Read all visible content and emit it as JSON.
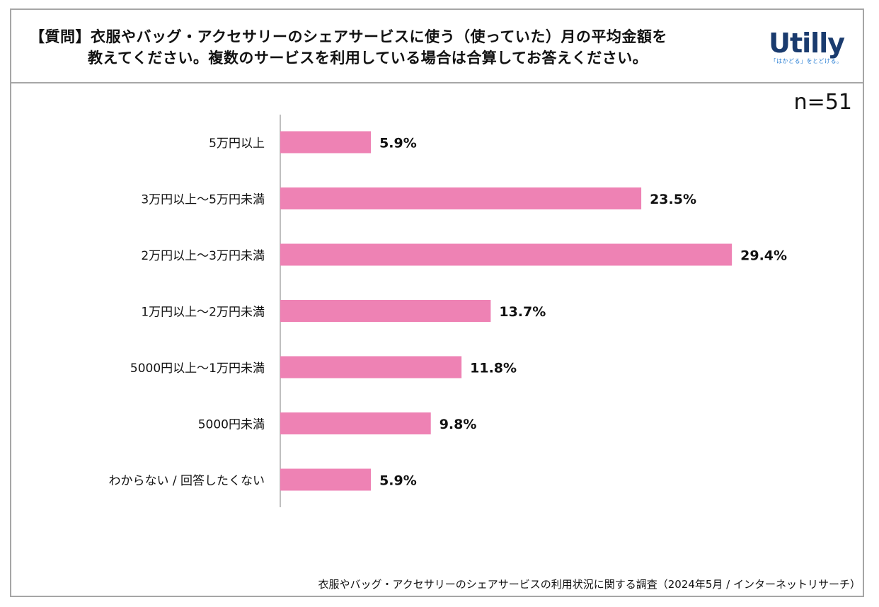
{
  "header": {
    "question_prefix": "【質問】",
    "question_line1": "衣服やバッグ・アクセサリーのシェアサービスに使う（使っていた）月の平均金額を",
    "question_line2": "教えてください。複数のサービスを利用している場合は合算してお答えください。"
  },
  "logo": {
    "word": "Utilly",
    "tagline": "「はかどる」をとどける。"
  },
  "sample_size": "n=51",
  "footer": {
    "source": "衣服やバッグ・アクセサリーのシェアサービスの利用状況に関する調査（2024年5月 / インターネットリサーチ）"
  },
  "colors": {
    "bar": "#ee82b4",
    "axis": "#7f7f7f"
  },
  "chart_data": {
    "type": "bar",
    "orientation": "horizontal",
    "title": "",
    "xlabel": "",
    "ylabel": "",
    "categories": [
      "5万円以上",
      "3万円以上～5万円未満",
      "2万円以上～3万円未満",
      "1万円以上～2万円未満",
      "5000円以上～1万円未満",
      "5000円未満",
      "わからない / 回答したくない"
    ],
    "values": [
      5.9,
      23.5,
      29.4,
      13.7,
      11.8,
      9.8,
      5.9
    ],
    "value_labels": [
      "5.9%",
      "23.5%",
      "29.4%",
      "13.7%",
      "11.8%",
      "9.8%",
      "5.9%"
    ],
    "unit": "%",
    "xlim": [
      0,
      34
    ],
    "grid": false
  }
}
